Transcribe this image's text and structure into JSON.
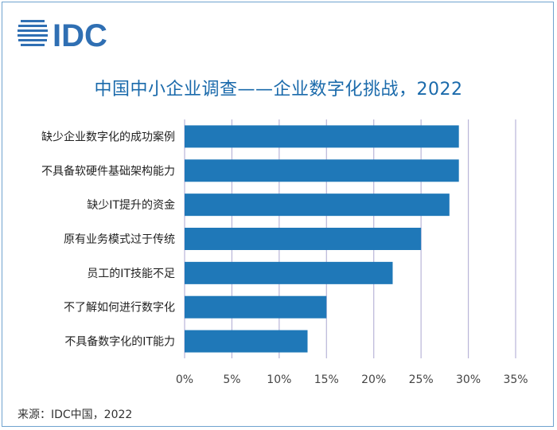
{
  "logo_text": "IDC",
  "source": "来源：IDC中国，2022",
  "chart_data": {
    "type": "bar",
    "orientation": "horizontal",
    "title": "中国中小企业调查——企业数字化挑战，2022",
    "categories": [
      "缺少企业数字化的成功案例",
      "不具备软硬件基础架构能力",
      "缺少IT提升的资金",
      "原有业务模式过于传统",
      "员工的IT技能不足",
      "不了解如何进行数字化",
      "不具备数字化的IT能力"
    ],
    "values": [
      0.29,
      0.29,
      0.28,
      0.25,
      0.22,
      0.15,
      0.13
    ],
    "xlim": [
      0,
      0.35
    ],
    "xticks": [
      "0%",
      "5%",
      "10%",
      "15%",
      "20%",
      "25%",
      "30%",
      "35%"
    ],
    "grid": true,
    "bar_color": "#1f78b8",
    "grid_color": "#b9b5d8"
  }
}
